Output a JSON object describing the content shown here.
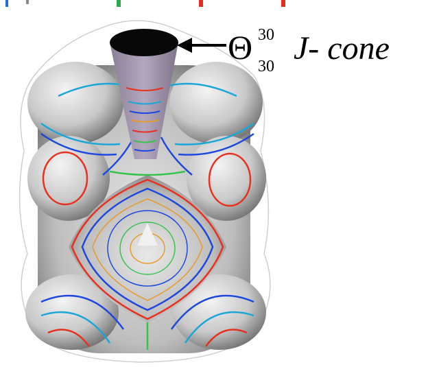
{
  "label": {
    "symbol": "Θ",
    "superscript": "30",
    "subscript": "30",
    "name": "J- cone"
  }
}
